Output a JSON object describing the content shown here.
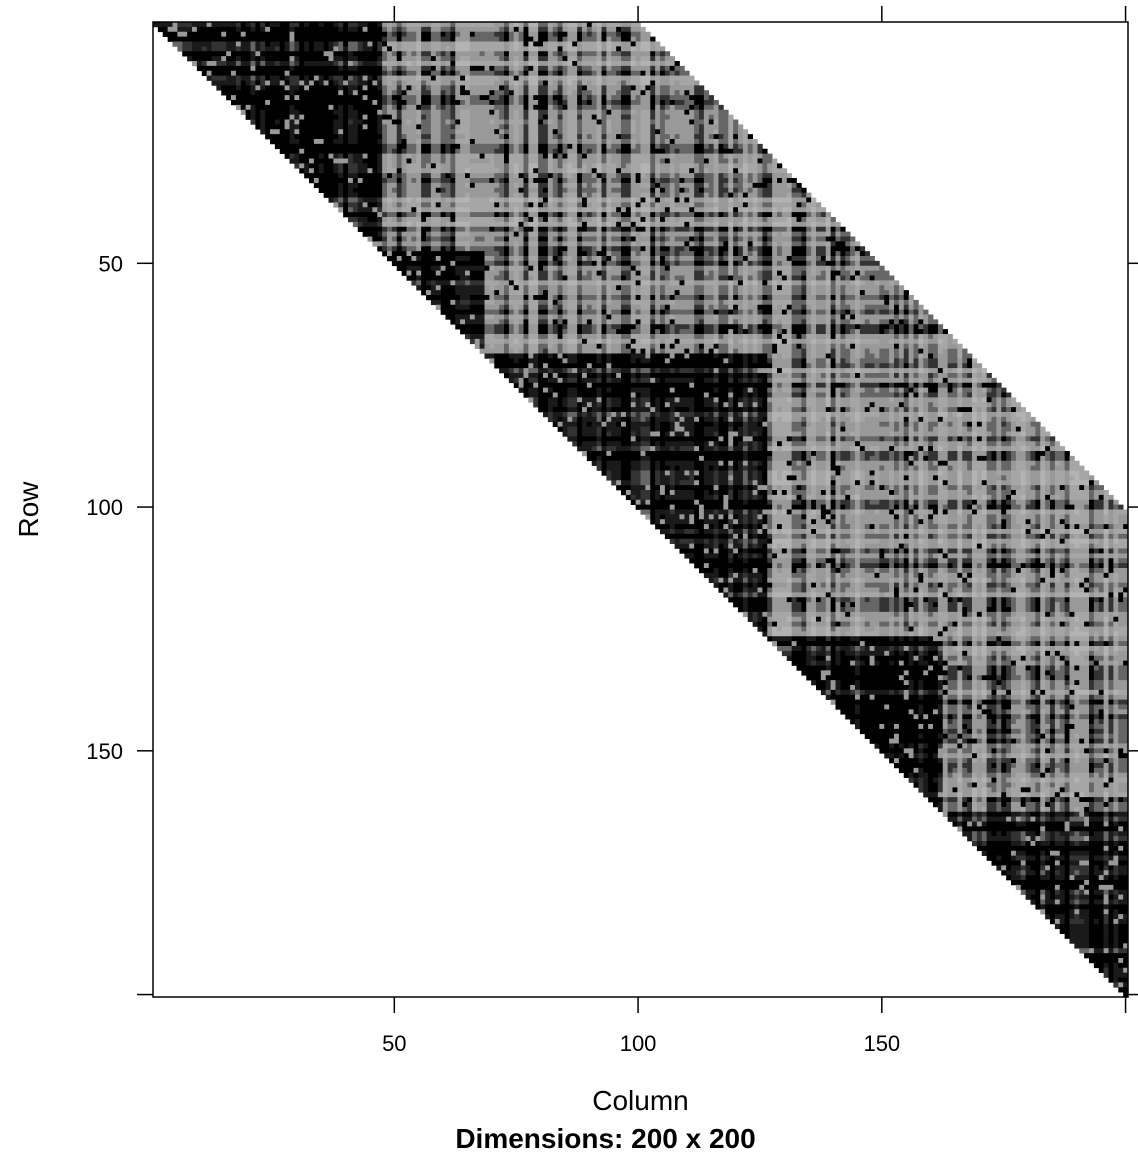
{
  "chart_data": {
    "type": "heatmap",
    "title": "",
    "xlabel": "Column",
    "ylabel": "Row",
    "subtitle": "Dimensions: 200 x 200",
    "rows": 200,
    "cols": 200,
    "xlim": [
      1,
      200
    ],
    "ylim": [
      1,
      200
    ],
    "y_reversed": true,
    "x_ticks": [
      50,
      100,
      150
    ],
    "y_ticks": [
      50,
      100,
      150
    ],
    "grid": false,
    "legend": "none",
    "band_width": 100,
    "note": "",
    "blocks": [
      {
        "name": "block-1",
        "start": 1,
        "end": 47,
        "value": "dark"
      },
      {
        "name": "block-2",
        "start": 48,
        "end": 68,
        "value": "dark"
      },
      {
        "name": "block-3",
        "start": 69,
        "end": 126,
        "value": "dark"
      },
      {
        "name": "block-4",
        "start": 127,
        "end": 162,
        "value": "dark"
      },
      {
        "name": "block-5",
        "start": 163,
        "end": 200,
        "value": "dark"
      }
    ],
    "colors": {
      "dark": "#000000",
      "mid": "#4d4d4d",
      "light": "#a6a6a6",
      "background": "#ffffff"
    }
  }
}
